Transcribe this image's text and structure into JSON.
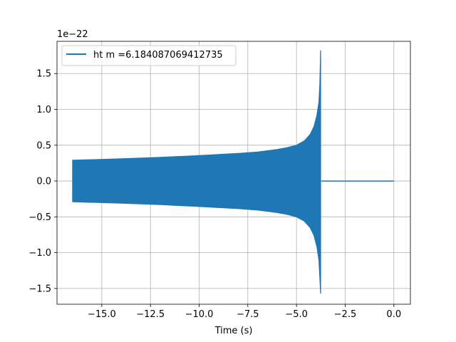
{
  "chart_data": {
    "type": "line",
    "title": "",
    "xlabel": "Time (s)",
    "ylabel": "",
    "y_offset_text": "1e−22",
    "xlim": [
      -17.3,
      0.85
    ],
    "ylim": [
      -1.72,
      1.95
    ],
    "x_ticks": [
      -15.0,
      -12.5,
      -10.0,
      -7.5,
      -5.0,
      -2.5,
      0.0
    ],
    "x_tick_labels": [
      "−15.0",
      "−12.5",
      "−10.0",
      "−7.5",
      "−5.0",
      "−2.5",
      "0.0"
    ],
    "y_ticks": [
      -1.5,
      -1.0,
      -0.5,
      0.0,
      0.5,
      1.0,
      1.5
    ],
    "y_tick_labels": [
      "−1.5",
      "−1.0",
      "−0.5",
      "0.0",
      "0.5",
      "1.0",
      "1.5"
    ],
    "grid": true,
    "legend_position": "top-left",
    "series": [
      {
        "name": "ht m =6.184087069412735",
        "color": "#1f77b4",
        "envelope": {
          "x": [
            -16.5,
            -14.0,
            -12.0,
            -10.0,
            -8.0,
            -7.0,
            -6.0,
            -5.5,
            -5.0,
            -4.6,
            -4.3,
            -4.1,
            -3.95,
            -3.85,
            -3.8,
            -3.76
          ],
          "upper": [
            0.29,
            0.31,
            0.33,
            0.355,
            0.385,
            0.405,
            0.44,
            0.465,
            0.5,
            0.56,
            0.65,
            0.76,
            0.92,
            1.1,
            1.35,
            1.82
          ],
          "lower": [
            -0.29,
            -0.31,
            -0.33,
            -0.355,
            -0.385,
            -0.405,
            -0.44,
            -0.465,
            -0.5,
            -0.56,
            -0.65,
            -0.76,
            -0.92,
            -1.1,
            -1.35,
            -1.57
          ]
        },
        "flat_segment": {
          "x": [
            -3.72,
            0.0
          ],
          "y": 0.0
        }
      }
    ]
  }
}
